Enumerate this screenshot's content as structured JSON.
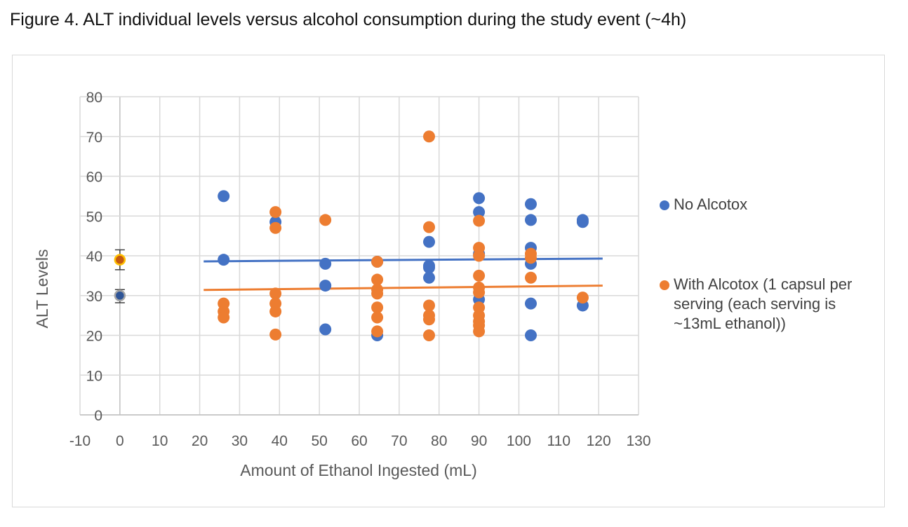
{
  "figure_title": "Figure 4. ALT individual levels versus alcohol consumption during the study event (~4h)",
  "colors": {
    "no_alcotox": "#4472C4",
    "with_alcotox": "#ED7D31",
    "grid": "#d9d9d9",
    "error_bar": "#404040",
    "highlight_ring": "#FFC000"
  },
  "chart_data": {
    "type": "scatter",
    "title": "Figure 4. ALT individual levels versus alcohol consumption during the study event (~4h)",
    "xlabel": "Amount of Ethanol Ingested (mL)",
    "ylabel": "ALT Levels",
    "xlim": [
      -10,
      130
    ],
    "ylim": [
      0,
      80
    ],
    "xticks": [
      -10,
      0,
      10,
      20,
      30,
      40,
      50,
      60,
      70,
      80,
      90,
      100,
      110,
      120,
      130
    ],
    "yticks": [
      0,
      10,
      20,
      30,
      40,
      50,
      60,
      70,
      80
    ],
    "grid": true,
    "legend_position": "right",
    "series": [
      {
        "name": "No Alcotox",
        "color": "#4472C4",
        "points": [
          [
            26,
            55
          ],
          [
            26,
            39
          ],
          [
            39,
            48.5
          ],
          [
            51.5,
            38
          ],
          [
            51.5,
            32.5
          ],
          [
            51.5,
            21.5
          ],
          [
            64.5,
            38.5
          ],
          [
            64.5,
            20
          ],
          [
            77.5,
            43.5
          ],
          [
            77.5,
            37.5
          ],
          [
            77.5,
            37
          ],
          [
            77.5,
            34.5
          ],
          [
            90,
            54.5
          ],
          [
            90,
            51
          ],
          [
            90,
            40.5
          ],
          [
            90,
            29
          ],
          [
            103,
            53
          ],
          [
            103,
            49
          ],
          [
            103,
            42
          ],
          [
            103,
            38
          ],
          [
            103,
            28
          ],
          [
            103,
            20
          ],
          [
            116,
            49
          ],
          [
            116,
            48.5
          ],
          [
            116,
            27.5
          ]
        ],
        "trendline": {
          "x": [
            21,
            121
          ],
          "y": [
            38.6,
            39.3
          ]
        }
      },
      {
        "name": "With Alcotox (1 capsul per serving  (each serving is ~13mL ethanol))",
        "color": "#ED7D31",
        "points": [
          [
            26,
            28
          ],
          [
            26,
            26
          ],
          [
            26,
            24.5
          ],
          [
            39,
            51
          ],
          [
            39,
            47
          ],
          [
            39,
            30.5
          ],
          [
            39,
            28
          ],
          [
            39,
            26
          ],
          [
            39,
            20.2
          ],
          [
            51.5,
            49
          ],
          [
            64.5,
            38.5
          ],
          [
            64.5,
            34
          ],
          [
            64.5,
            31.5
          ],
          [
            64.5,
            30.5
          ],
          [
            64.5,
            27
          ],
          [
            64.5,
            24.5
          ],
          [
            64.5,
            21
          ],
          [
            77.5,
            70
          ],
          [
            77.5,
            47.2
          ],
          [
            77.5,
            27.5
          ],
          [
            77.5,
            25
          ],
          [
            77.5,
            24
          ],
          [
            77.5,
            20
          ],
          [
            90,
            48.8
          ],
          [
            90,
            42
          ],
          [
            90,
            40
          ],
          [
            90,
            35
          ],
          [
            90,
            32
          ],
          [
            90,
            30.8
          ],
          [
            90,
            27
          ],
          [
            90,
            25
          ],
          [
            90,
            23.5
          ],
          [
            90,
            22.5
          ],
          [
            90,
            21
          ],
          [
            103,
            40.5
          ],
          [
            103,
            39.5
          ],
          [
            103,
            34.5
          ],
          [
            116,
            29.5
          ]
        ],
        "trendline": {
          "x": [
            21,
            121
          ],
          "y": [
            31.4,
            32.5
          ]
        }
      }
    ],
    "baseline_means": [
      {
        "series": "With Alcotox",
        "x": 0,
        "y": 39,
        "error_low": 36.5,
        "error_high": 41.5
      },
      {
        "series": "No Alcotox",
        "x": 0,
        "y": 30,
        "error_low": 28.2,
        "error_high": 31.5
      }
    ]
  },
  "legend": {
    "items": [
      {
        "lines": [
          "No Alcotox"
        ],
        "color": "#4472C4"
      },
      {
        "lines": [
          "With Alcotox (1 capsul per",
          "serving  (each serving is",
          "~13mL ethanol))"
        ],
        "color": "#ED7D31"
      }
    ]
  }
}
